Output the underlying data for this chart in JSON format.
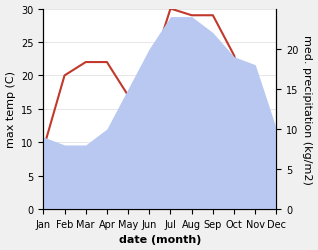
{
  "months": [
    "Jan",
    "Feb",
    "Mar",
    "Apr",
    "May",
    "Jun",
    "Jul",
    "Aug",
    "Sep",
    "Oct",
    "Nov",
    "Dec"
  ],
  "temperature": [
    9,
    20,
    22,
    22,
    17,
    20,
    30,
    29,
    29,
    23,
    11,
    11
  ],
  "precipitation": [
    9,
    8,
    8,
    10,
    15,
    20,
    24,
    24,
    22,
    19,
    18,
    10
  ],
  "temp_color": "#c0392b",
  "precip_fill_color": "#b8c8f0",
  "temp_ylim": [
    0,
    30
  ],
  "precip_ylim": [
    0,
    25
  ],
  "temp_yticks": [
    0,
    5,
    10,
    15,
    20,
    25,
    30
  ],
  "precip_yticks": [
    0,
    5,
    10,
    15,
    20
  ],
  "ylabel_left": "max temp (C)",
  "ylabel_right": "med. precipitation (kg/m2)",
  "xlabel": "date (month)",
  "bg_color": "#f0f0f0",
  "plot_bg_color": "#ffffff",
  "label_fontsize": 8,
  "tick_fontsize": 7
}
